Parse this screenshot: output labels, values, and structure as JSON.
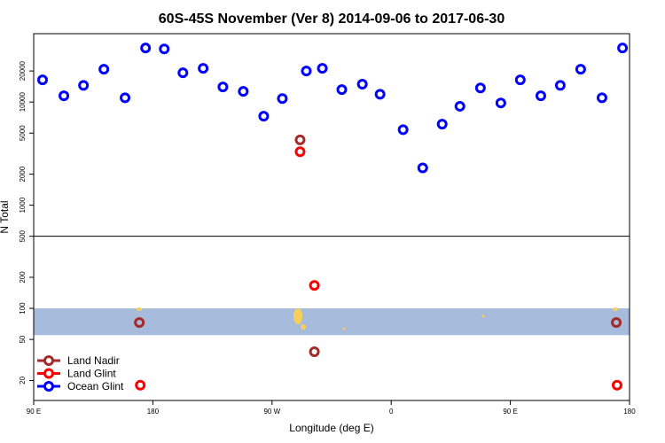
{
  "chart_data": {
    "type": "scatter",
    "title": "60S-45S November (Ver 8)   2014-09-06 to 2017-06-30",
    "x_label": "Longitude (deg E)",
    "y_label": "N Total",
    "log_y": true,
    "xlim": [
      90,
      540
    ],
    "ylim": [
      12.8,
      46000
    ],
    "xticks": [
      {
        "value": 90,
        "label": "90 E"
      },
      {
        "value": 180,
        "label": "180"
      },
      {
        "value": 270,
        "label": "90 W"
      },
      {
        "value": 360,
        "label": "0"
      },
      {
        "value": 450,
        "label": "90 E"
      },
      {
        "value": 540,
        "label": "180"
      }
    ],
    "yticks": [
      20,
      50,
      100,
      200,
      500,
      1000,
      2000,
      5000,
      10000,
      20000
    ],
    "hline": 500,
    "shade_range": [
      55,
      100
    ],
    "shade_color": "#a7bcdc",
    "legend": "bottomleft",
    "series": [
      {
        "name": "Land Nadir",
        "color": "#a52a2a",
        "x": [
          291.2,
          169.8,
          302,
          530
        ],
        "values": [
          4300,
          73,
          38,
          73
        ]
      },
      {
        "name": "Land Glint",
        "color": "#ff0000",
        "x": [
          291.2,
          302,
          170.5,
          530.6
        ],
        "values": [
          3300,
          167,
          18,
          18
        ]
      },
      {
        "name": "Ocean Glint",
        "color": "#0000ff",
        "x": [
          96.7,
          112.8,
          127.6,
          143,
          159,
          174.5,
          188.6,
          202.7,
          218,
          232.9,
          248.3,
          263.7,
          277.8,
          295.9,
          308,
          322.7,
          338.2,
          351.6,
          369,
          383.8,
          398.5,
          411.9,
          427.4,
          442.8,
          457.5,
          473,
          487.7,
          503.1,
          519.2,
          534.7
        ],
        "values": [
          16400,
          11500,
          14500,
          20800,
          11000,
          33400,
          32700,
          19200,
          21200,
          14000,
          12700,
          7300,
          10800,
          20000,
          21200,
          13200,
          14900,
          11900,
          5400,
          2300,
          6100,
          9100,
          13700,
          9800,
          16400,
          11500,
          14500,
          20800,
          11000,
          33400
        ]
      }
    ]
  }
}
